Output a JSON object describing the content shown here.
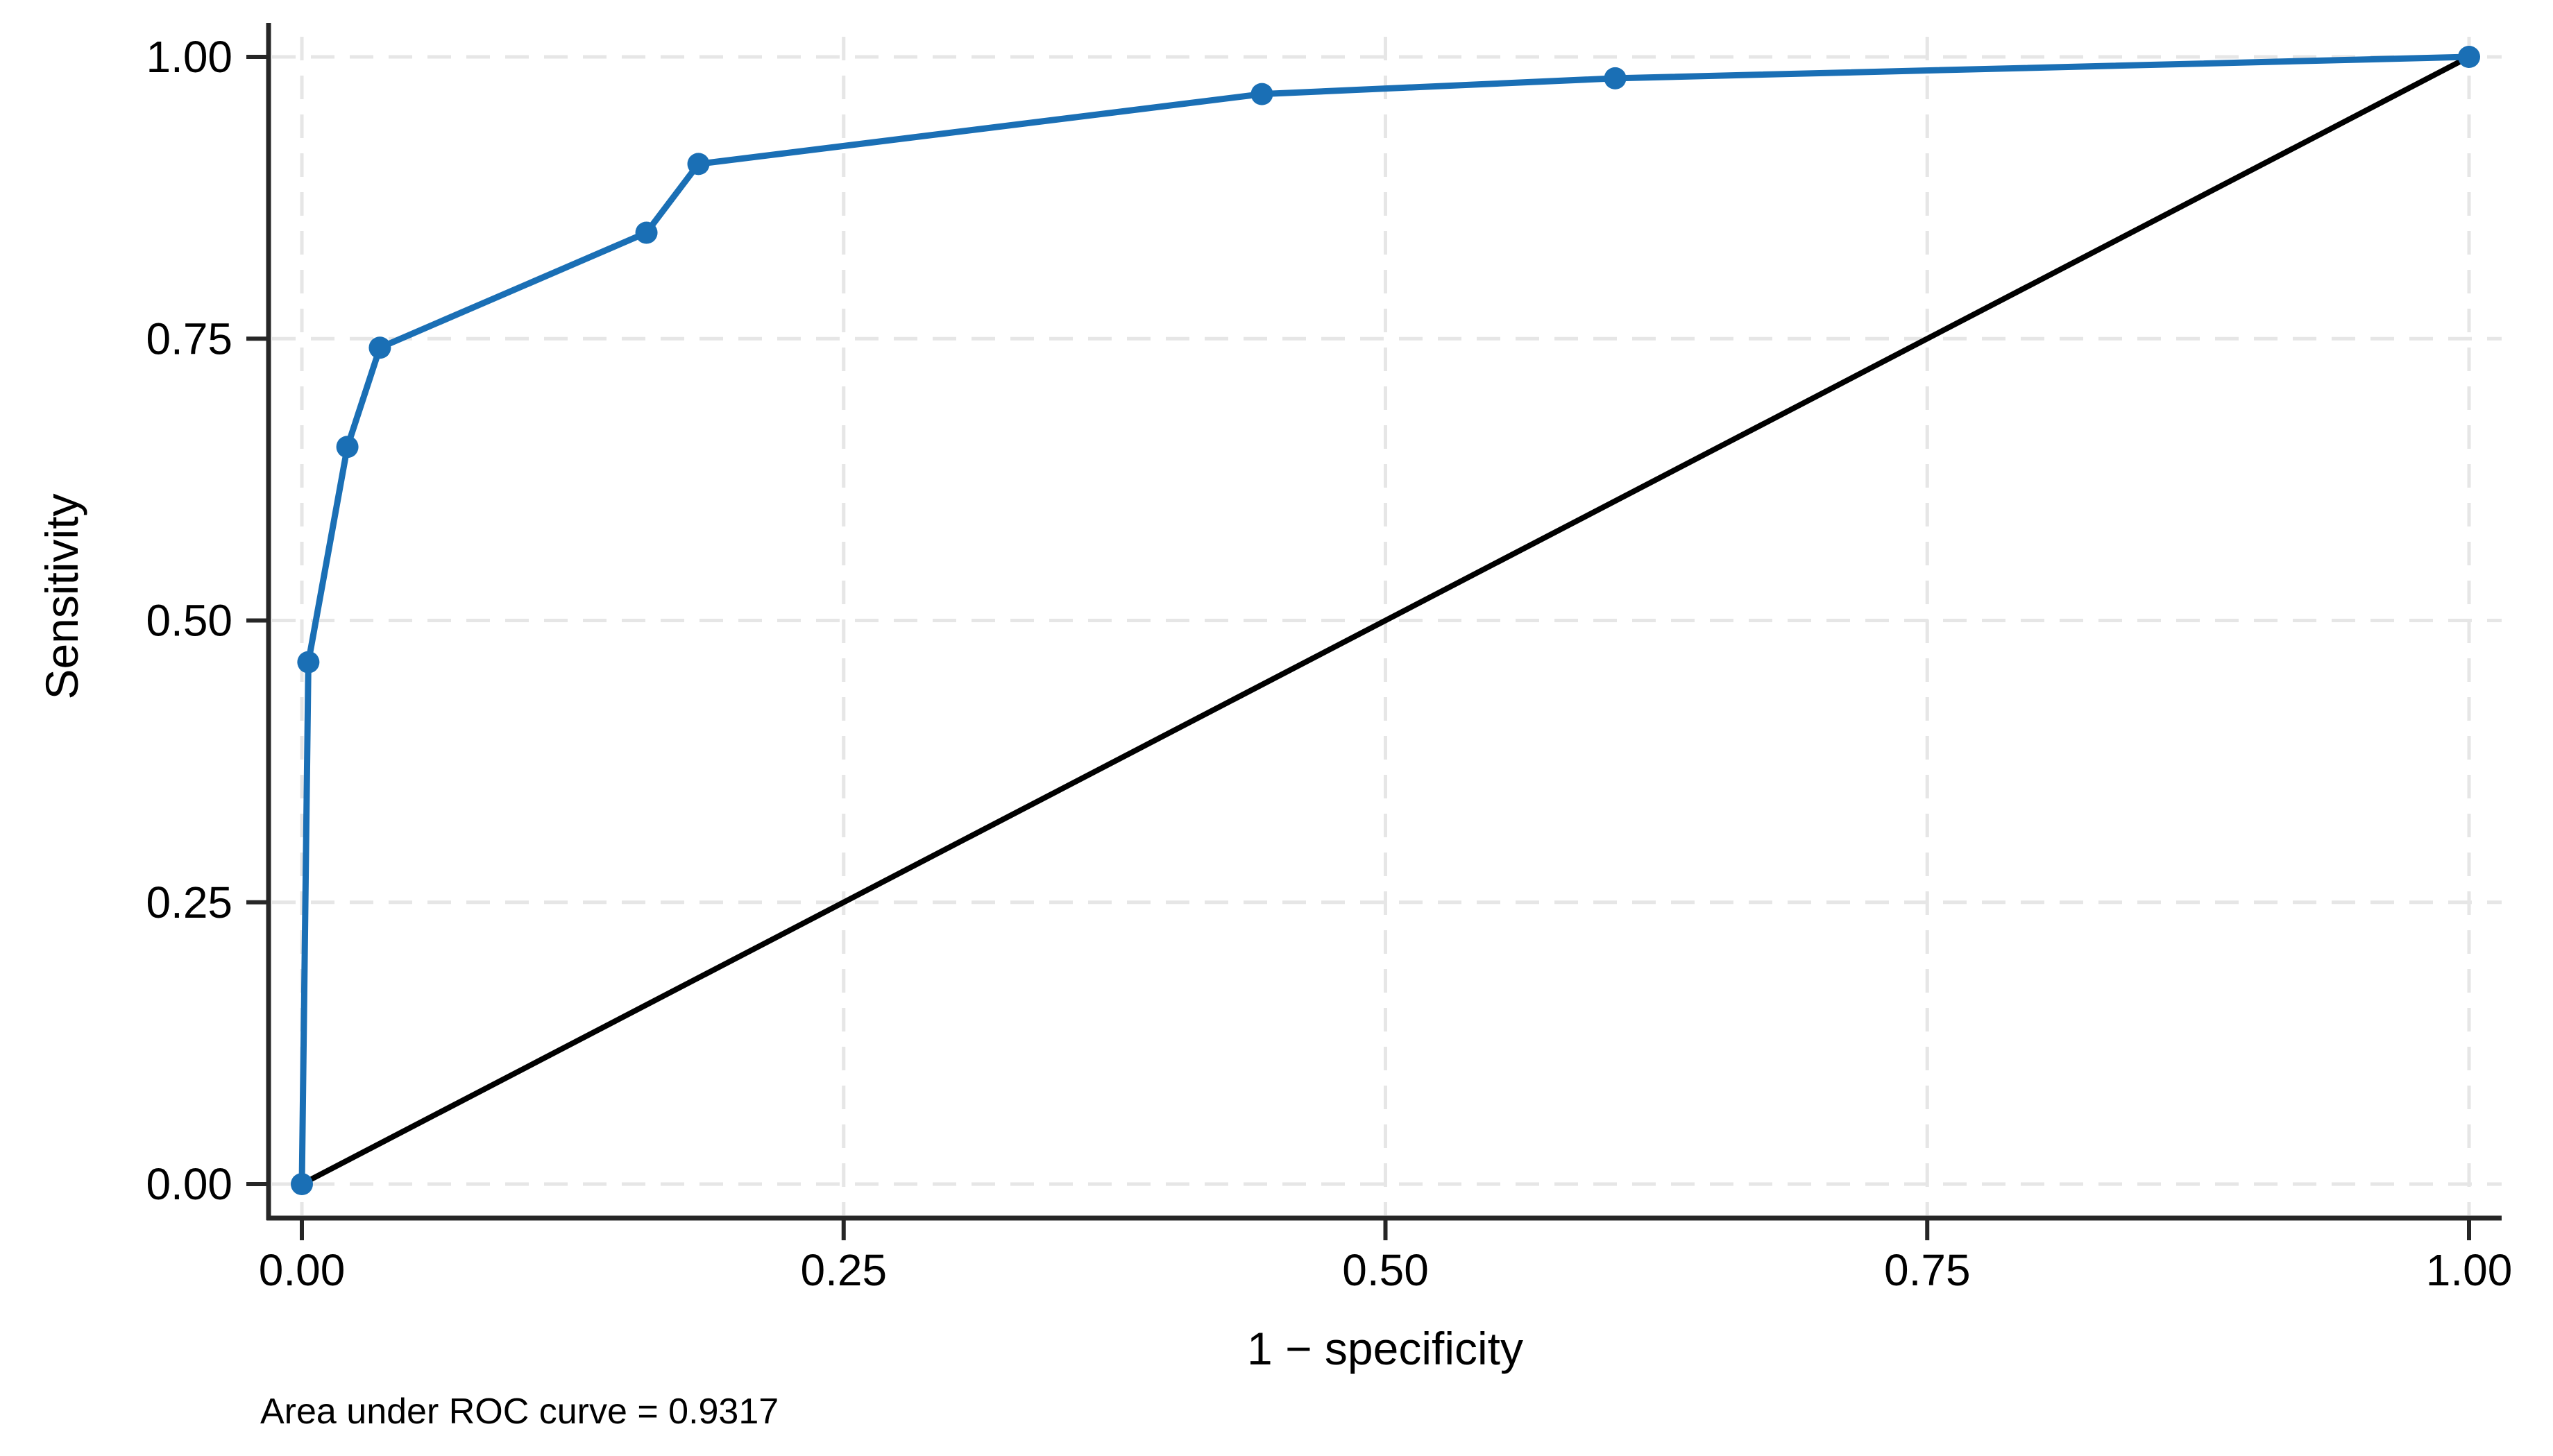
{
  "chart_data": {
    "type": "line",
    "title": "",
    "xlabel": "1 − specificity",
    "ylabel": "Sensitivity",
    "xlim": [
      0,
      1
    ],
    "ylim": [
      0,
      1
    ],
    "grid": "dashed light-gray gridlines at every tick, both axes",
    "legend": "none",
    "x_ticks": {
      "values": [
        0,
        0.25,
        0.5,
        0.75,
        1.0
      ],
      "labels": [
        "0.00",
        "0.25",
        "0.50",
        "0.75",
        "1.00"
      ]
    },
    "y_ticks": {
      "values": [
        0,
        0.25,
        0.5,
        0.75,
        1.0
      ],
      "labels": [
        "0.00",
        "0.25",
        "0.50",
        "0.75",
        "1.00"
      ]
    },
    "series": [
      {
        "name": "ROC curve",
        "style": "line-with-circle-markers",
        "color": "#1a6fb5",
        "points": [
          [
            0.0,
            0.0
          ],
          [
            0.003,
            0.463
          ],
          [
            0.021,
            0.654
          ],
          [
            0.036,
            0.742
          ],
          [
            0.159,
            0.844
          ],
          [
            0.183,
            0.905
          ],
          [
            0.443,
            0.967
          ],
          [
            0.606,
            0.981
          ],
          [
            1.0,
            1.0
          ]
        ]
      },
      {
        "name": "Reference (chance) line",
        "style": "solid-line",
        "color": "#000000",
        "points": [
          [
            0,
            0
          ],
          [
            1,
            1
          ]
        ]
      }
    ],
    "annotation": "Area under ROC curve = 0.9317",
    "auc_value": 0.9317,
    "colors": {
      "roc_line": "#1a6fb5",
      "reference_line": "#000000",
      "gridline": "#e6e6e6",
      "axis": "#262626",
      "text": "#000000",
      "background": "#ffffff"
    }
  }
}
